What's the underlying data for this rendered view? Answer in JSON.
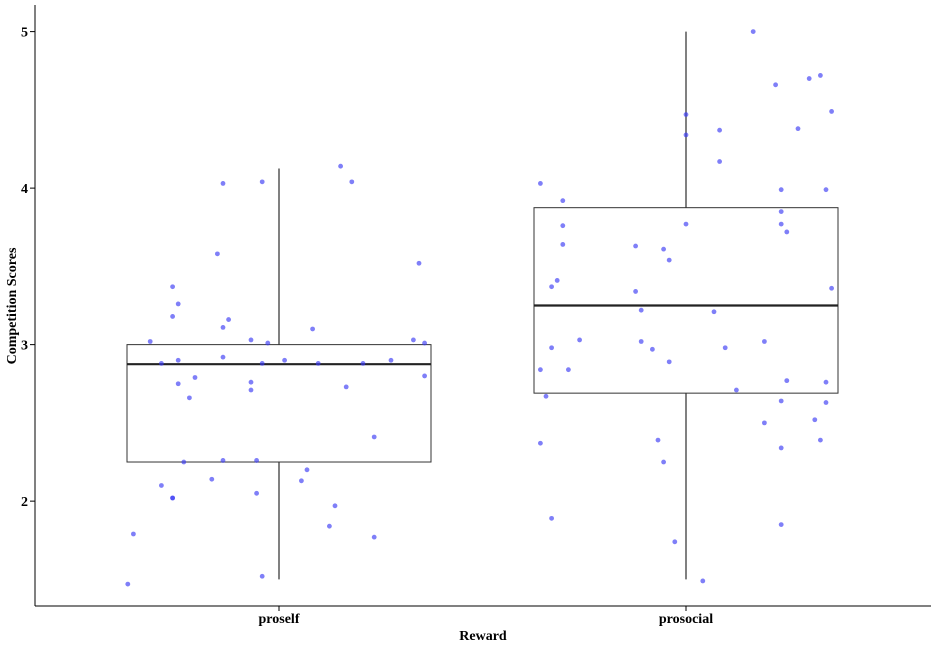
{
  "chart_data": {
    "type": "boxplot",
    "xlabel": "Reward",
    "ylabel": "Competition Scores",
    "ylim": [
      1.33,
      5.17
    ],
    "yticks": [
      2,
      3,
      4,
      5
    ],
    "grid": false,
    "point_color": "#3b3bf5",
    "categories": [
      "proself",
      "prosocial"
    ],
    "boxes": [
      {
        "category": "proself",
        "min": 1.5,
        "q1": 2.25,
        "median": 2.875,
        "q3": 3.0,
        "max": 4.125
      },
      {
        "category": "prosocial",
        "min": 1.5,
        "q1": 2.69,
        "median": 3.25,
        "q3": 3.875,
        "max": 5.0
      }
    ],
    "points": [
      {
        "category": "proself",
        "jitter": -0.27,
        "y": 1.47
      },
      {
        "category": "proself",
        "jitter": -0.03,
        "y": 1.52
      },
      {
        "category": "proself",
        "jitter": 0.17,
        "y": 1.77
      },
      {
        "category": "proself",
        "jitter": -0.26,
        "y": 1.79
      },
      {
        "category": "proself",
        "jitter": 0.09,
        "y": 1.84
      },
      {
        "category": "proself",
        "jitter": 0.1,
        "y": 1.97
      },
      {
        "category": "proself",
        "jitter": -0.19,
        "y": 2.02
      },
      {
        "category": "proself",
        "jitter": -0.19,
        "y": 2.02
      },
      {
        "category": "proself",
        "jitter": -0.04,
        "y": 2.05
      },
      {
        "category": "proself",
        "jitter": -0.21,
        "y": 2.1
      },
      {
        "category": "proself",
        "jitter": 0.04,
        "y": 2.13
      },
      {
        "category": "proself",
        "jitter": -0.12,
        "y": 2.14
      },
      {
        "category": "proself",
        "jitter": 0.05,
        "y": 2.2
      },
      {
        "category": "proself",
        "jitter": -0.17,
        "y": 2.25
      },
      {
        "category": "proself",
        "jitter": -0.1,
        "y": 2.26
      },
      {
        "category": "proself",
        "jitter": -0.04,
        "y": 2.26
      },
      {
        "category": "proself",
        "jitter": 0.17,
        "y": 2.41
      },
      {
        "category": "proself",
        "jitter": -0.16,
        "y": 2.66
      },
      {
        "category": "proself",
        "jitter": -0.05,
        "y": 2.71
      },
      {
        "category": "proself",
        "jitter": 0.12,
        "y": 2.73
      },
      {
        "category": "proself",
        "jitter": -0.18,
        "y": 2.75
      },
      {
        "category": "proself",
        "jitter": -0.05,
        "y": 2.76
      },
      {
        "category": "proself",
        "jitter": -0.15,
        "y": 2.79
      },
      {
        "category": "proself",
        "jitter": 0.26,
        "y": 2.8
      },
      {
        "category": "proself",
        "jitter": 0.15,
        "y": 2.88
      },
      {
        "category": "proself",
        "jitter": -0.21,
        "y": 2.88
      },
      {
        "category": "proself",
        "jitter": -0.03,
        "y": 2.88
      },
      {
        "category": "proself",
        "jitter": 0.07,
        "y": 2.88
      },
      {
        "category": "proself",
        "jitter": -0.18,
        "y": 2.9
      },
      {
        "category": "proself",
        "jitter": 0.01,
        "y": 2.9
      },
      {
        "category": "proself",
        "jitter": 0.2,
        "y": 2.9
      },
      {
        "category": "proself",
        "jitter": -0.1,
        "y": 2.92
      },
      {
        "category": "proself",
        "jitter": -0.23,
        "y": 3.02
      },
      {
        "category": "proself",
        "jitter": -0.02,
        "y": 3.01
      },
      {
        "category": "proself",
        "jitter": 0.24,
        "y": 3.03
      },
      {
        "category": "proself",
        "jitter": 0.26,
        "y": 3.01
      },
      {
        "category": "proself",
        "jitter": -0.05,
        "y": 3.03
      },
      {
        "category": "proself",
        "jitter": 0.06,
        "y": 3.1
      },
      {
        "category": "proself",
        "jitter": -0.1,
        "y": 3.11
      },
      {
        "category": "proself",
        "jitter": -0.09,
        "y": 3.16
      },
      {
        "category": "proself",
        "jitter": -0.19,
        "y": 3.18
      },
      {
        "category": "proself",
        "jitter": -0.18,
        "y": 3.26
      },
      {
        "category": "proself",
        "jitter": -0.19,
        "y": 3.37
      },
      {
        "category": "proself",
        "jitter": 0.25,
        "y": 3.52
      },
      {
        "category": "proself",
        "jitter": -0.11,
        "y": 3.58
      },
      {
        "category": "proself",
        "jitter": -0.1,
        "y": 4.03
      },
      {
        "category": "proself",
        "jitter": -0.03,
        "y": 4.04
      },
      {
        "category": "proself",
        "jitter": 0.13,
        "y": 4.04
      },
      {
        "category": "proself",
        "jitter": 0.11,
        "y": 4.14
      },
      {
        "category": "prosocial",
        "jitter": 0.03,
        "y": 1.49
      },
      {
        "category": "prosocial",
        "jitter": -0.02,
        "y": 1.74
      },
      {
        "category": "prosocial",
        "jitter": 0.17,
        "y": 1.85
      },
      {
        "category": "prosocial",
        "jitter": -0.24,
        "y": 1.89
      },
      {
        "category": "prosocial",
        "jitter": -0.04,
        "y": 2.25
      },
      {
        "category": "prosocial",
        "jitter": -0.05,
        "y": 2.39
      },
      {
        "category": "prosocial",
        "jitter": -0.26,
        "y": 2.37
      },
      {
        "category": "prosocial",
        "jitter": 0.24,
        "y": 2.39
      },
      {
        "category": "prosocial",
        "jitter": 0.17,
        "y": 2.34
      },
      {
        "category": "prosocial",
        "jitter": 0.14,
        "y": 2.5
      },
      {
        "category": "prosocial",
        "jitter": 0.23,
        "y": 2.52
      },
      {
        "category": "prosocial",
        "jitter": 0.17,
        "y": 2.64
      },
      {
        "category": "prosocial",
        "jitter": 0.25,
        "y": 2.63
      },
      {
        "category": "prosocial",
        "jitter": -0.25,
        "y": 2.67
      },
      {
        "category": "prosocial",
        "jitter": 0.09,
        "y": 2.71
      },
      {
        "category": "prosocial",
        "jitter": 0.18,
        "y": 2.77
      },
      {
        "category": "prosocial",
        "jitter": 0.25,
        "y": 2.76
      },
      {
        "category": "prosocial",
        "jitter": -0.26,
        "y": 2.84
      },
      {
        "category": "prosocial",
        "jitter": -0.21,
        "y": 2.84
      },
      {
        "category": "prosocial",
        "jitter": -0.03,
        "y": 2.89
      },
      {
        "category": "prosocial",
        "jitter": -0.06,
        "y": 2.97
      },
      {
        "category": "prosocial",
        "jitter": -0.24,
        "y": 2.98
      },
      {
        "category": "prosocial",
        "jitter": 0.07,
        "y": 2.98
      },
      {
        "category": "prosocial",
        "jitter": -0.08,
        "y": 3.02
      },
      {
        "category": "prosocial",
        "jitter": -0.19,
        "y": 3.03
      },
      {
        "category": "prosocial",
        "jitter": 0.14,
        "y": 3.02
      },
      {
        "category": "prosocial",
        "jitter": 0.05,
        "y": 3.21
      },
      {
        "category": "prosocial",
        "jitter": -0.08,
        "y": 3.22
      },
      {
        "category": "prosocial",
        "jitter": -0.09,
        "y": 3.34
      },
      {
        "category": "prosocial",
        "jitter": -0.24,
        "y": 3.37
      },
      {
        "category": "prosocial",
        "jitter": -0.23,
        "y": 3.41
      },
      {
        "category": "prosocial",
        "jitter": 0.26,
        "y": 3.36
      },
      {
        "category": "prosocial",
        "jitter": -0.03,
        "y": 3.54
      },
      {
        "category": "prosocial",
        "jitter": -0.04,
        "y": 3.61
      },
      {
        "category": "prosocial",
        "jitter": -0.09,
        "y": 3.63
      },
      {
        "category": "prosocial",
        "jitter": -0.22,
        "y": 3.64
      },
      {
        "category": "prosocial",
        "jitter": 0.18,
        "y": 3.72
      },
      {
        "category": "prosocial",
        "jitter": -0.22,
        "y": 3.76
      },
      {
        "category": "prosocial",
        "jitter": 0.0,
        "y": 3.77
      },
      {
        "category": "prosocial",
        "jitter": 0.17,
        "y": 3.77
      },
      {
        "category": "prosocial",
        "jitter": 0.17,
        "y": 3.85
      },
      {
        "category": "prosocial",
        "jitter": -0.22,
        "y": 3.92
      },
      {
        "category": "prosocial",
        "jitter": 0.17,
        "y": 3.99
      },
      {
        "category": "prosocial",
        "jitter": 0.25,
        "y": 3.99
      },
      {
        "category": "prosocial",
        "jitter": -0.26,
        "y": 4.03
      },
      {
        "category": "prosocial",
        "jitter": 0.06,
        "y": 4.17
      },
      {
        "category": "prosocial",
        "jitter": 0.0,
        "y": 4.34
      },
      {
        "category": "prosocial",
        "jitter": 0.06,
        "y": 4.37
      },
      {
        "category": "prosocial",
        "jitter": 0.2,
        "y": 4.38
      },
      {
        "category": "prosocial",
        "jitter": 0.0,
        "y": 4.47
      },
      {
        "category": "prosocial",
        "jitter": 0.26,
        "y": 4.49
      },
      {
        "category": "prosocial",
        "jitter": 0.16,
        "y": 4.66
      },
      {
        "category": "prosocial",
        "jitter": 0.22,
        "y": 4.7
      },
      {
        "category": "prosocial",
        "jitter": 0.24,
        "y": 4.72
      },
      {
        "category": "prosocial",
        "jitter": 0.12,
        "y": 5.0
      }
    ]
  }
}
